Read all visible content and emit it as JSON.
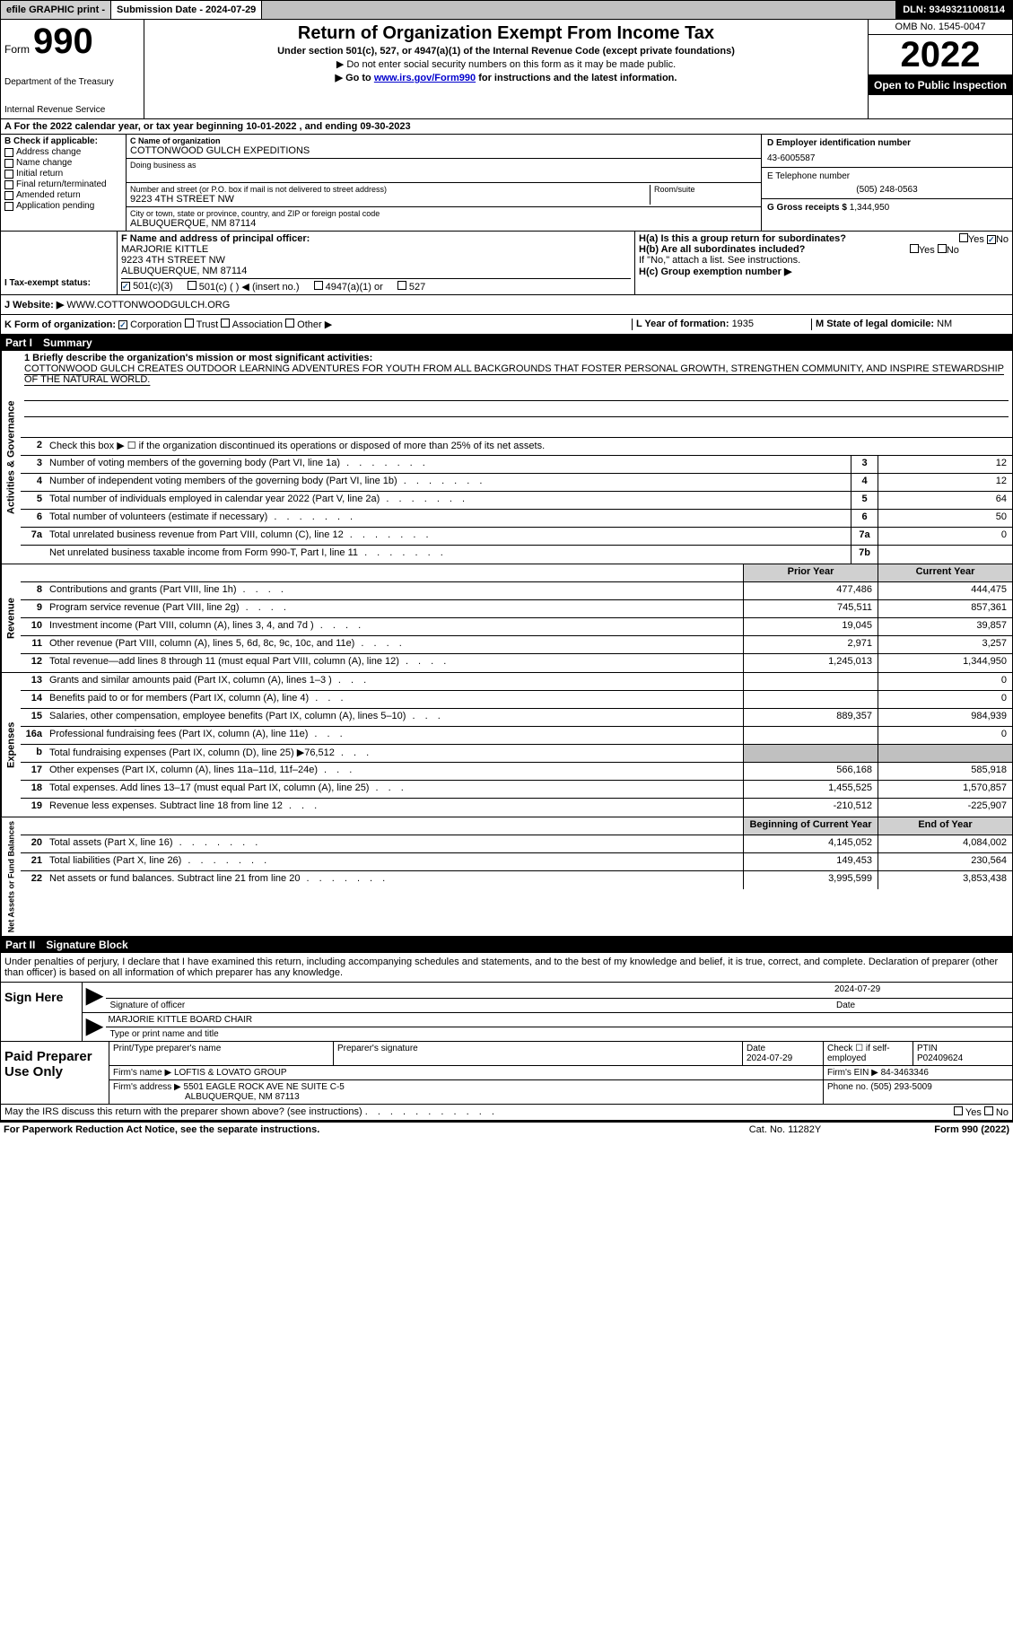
{
  "topbar": {
    "efile": "efile GRAPHIC print -",
    "submission": "Submission Date - 2024-07-29",
    "dln": "DLN: 93493211008114"
  },
  "header": {
    "form_word": "Form",
    "form_num": "990",
    "title": "Return of Organization Exempt From Income Tax",
    "subtitle": "Under section 501(c), 527, or 4947(a)(1) of the Internal Revenue Code (except private foundations)",
    "instr1": "▶ Do not enter social security numbers on this form as it may be made public.",
    "instr2_pre": "▶ Go to ",
    "instr2_link": "www.irs.gov/Form990",
    "instr2_post": " for instructions and the latest information.",
    "dept": "Department of the Treasury",
    "irs": "Internal Revenue Service",
    "omb": "OMB No. 1545-0047",
    "year": "2022",
    "open": "Open to Public Inspection"
  },
  "section_a": "A For the 2022 calendar year, or tax year beginning 10-01-2022    , and ending 09-30-2023",
  "section_b": {
    "label": "B Check if applicable:",
    "opts": [
      "Address change",
      "Name change",
      "Initial return",
      "Final return/terminated",
      "Amended return",
      "Application pending"
    ]
  },
  "section_c": {
    "name_label": "C Name of organization",
    "name": "COTTONWOOD GULCH EXPEDITIONS",
    "dba_label": "Doing business as",
    "street_label": "Number and street (or P.O. box if mail is not delivered to street address)",
    "street": "9223 4TH STREET NW",
    "room_label": "Room/suite",
    "city_label": "City or town, state or province, country, and ZIP or foreign postal code",
    "city": "ALBUQUERQUE, NM   87114"
  },
  "section_d": {
    "label": "D Employer identification number",
    "val": "43-6005587"
  },
  "section_e": {
    "label": "E Telephone number",
    "val": "(505) 248-0563"
  },
  "section_g": {
    "label": "G Gross receipts $ ",
    "val": "1,344,950"
  },
  "section_f": {
    "label": "F  Name and address of principal officer:",
    "name": "MARJORIE KITTLE",
    "addr1": "9223 4TH STREET NW",
    "addr2": "ALBUQUERQUE, NM  87114"
  },
  "section_h": {
    "a": "H(a)  Is this a group return for subordinates?",
    "a_yes": "Yes",
    "a_no": "No",
    "b": "H(b)  Are all subordinates included?",
    "b_note": "If \"No,\" attach a list. See instructions.",
    "c": "H(c)  Group exemption number ▶"
  },
  "section_i": {
    "label": "I    Tax-exempt status:",
    "o1": "501(c)(3)",
    "o2": "501(c) (  ) ◀ (insert no.)",
    "o3": "4947(a)(1) or",
    "o4": "527"
  },
  "section_j": {
    "label": "J    Website: ▶",
    "val": " WWW.COTTONWOODGULCH.ORG"
  },
  "section_k": {
    "label": "K Form of organization:",
    "o1": "Corporation",
    "o2": "Trust",
    "o3": "Association",
    "o4": "Other ▶"
  },
  "section_l": {
    "label": "L Year of formation: ",
    "val": "1935"
  },
  "section_m": {
    "label": "M State of legal domicile: ",
    "val": "NM"
  },
  "part1": {
    "num": "Part I",
    "title": "Summary"
  },
  "mission": {
    "label": "1  Briefly describe the organization's mission or most significant activities:",
    "text": "COTTONWOOD GULCH CREATES OUTDOOR LEARNING ADVENTURES FOR YOUTH FROM ALL BACKGROUNDS THAT FOSTER PERSONAL GROWTH, STRENGTHEN COMMUNITY, AND INSPIRE STEWARDSHIP OF THE NATURAL WORLD."
  },
  "line2": "Check this box ▶ ☐  if the organization discontinued its operations or disposed of more than 25% of its net assets.",
  "gov": [
    {
      "n": "3",
      "d": "Number of voting members of the governing body (Part VI, line 1a)",
      "b": "3",
      "v": "12"
    },
    {
      "n": "4",
      "d": "Number of independent voting members of the governing body (Part VI, line 1b)",
      "b": "4",
      "v": "12"
    },
    {
      "n": "5",
      "d": "Total number of individuals employed in calendar year 2022 (Part V, line 2a)",
      "b": "5",
      "v": "64"
    },
    {
      "n": "6",
      "d": "Total number of volunteers (estimate if necessary)",
      "b": "6",
      "v": "50"
    },
    {
      "n": "7a",
      "d": "Total unrelated business revenue from Part VIII, column (C), line 12",
      "b": "7a",
      "v": "0"
    },
    {
      "n": "",
      "d": "Net unrelated business taxable income from Form 990-T, Part I, line 11",
      "b": "7b",
      "v": ""
    }
  ],
  "col_headers": {
    "prior": "Prior Year",
    "current": "Current Year"
  },
  "revenue": [
    {
      "n": "8",
      "d": "Contributions and grants (Part VIII, line 1h)",
      "p": "477,486",
      "c": "444,475"
    },
    {
      "n": "9",
      "d": "Program service revenue (Part VIII, line 2g)",
      "p": "745,511",
      "c": "857,361"
    },
    {
      "n": "10",
      "d": "Investment income (Part VIII, column (A), lines 3, 4, and 7d )",
      "p": "19,045",
      "c": "39,857"
    },
    {
      "n": "11",
      "d": "Other revenue (Part VIII, column (A), lines 5, 6d, 8c, 9c, 10c, and 11e)",
      "p": "2,971",
      "c": "3,257"
    },
    {
      "n": "12",
      "d": "Total revenue—add lines 8 through 11 (must equal Part VIII, column (A), line 12)",
      "p": "1,245,013",
      "c": "1,344,950"
    }
  ],
  "expenses": [
    {
      "n": "13",
      "d": "Grants and similar amounts paid (Part IX, column (A), lines 1–3 )",
      "p": "",
      "c": "0"
    },
    {
      "n": "14",
      "d": "Benefits paid to or for members (Part IX, column (A), line 4)",
      "p": "",
      "c": "0"
    },
    {
      "n": "15",
      "d": "Salaries, other compensation, employee benefits (Part IX, column (A), lines 5–10)",
      "p": "889,357",
      "c": "984,939"
    },
    {
      "n": "16a",
      "d": "Professional fundraising fees (Part IX, column (A), line 11e)",
      "p": "",
      "c": "0"
    },
    {
      "n": "b",
      "d": "Total fundraising expenses (Part IX, column (D), line 25) ▶76,512",
      "p": "shade",
      "c": "shade"
    },
    {
      "n": "17",
      "d": "Other expenses (Part IX, column (A), lines 11a–11d, 11f–24e)",
      "p": "566,168",
      "c": "585,918"
    },
    {
      "n": "18",
      "d": "Total expenses. Add lines 13–17 (must equal Part IX, column (A), line 25)",
      "p": "1,455,525",
      "c": "1,570,857"
    },
    {
      "n": "19",
      "d": "Revenue less expenses. Subtract line 18 from line 12",
      "p": "-210,512",
      "c": "-225,907"
    }
  ],
  "net_headers": {
    "begin": "Beginning of Current Year",
    "end": "End of Year"
  },
  "netassets": [
    {
      "n": "20",
      "d": "Total assets (Part X, line 16)",
      "p": "4,145,052",
      "c": "4,084,002"
    },
    {
      "n": "21",
      "d": "Total liabilities (Part X, line 26)",
      "p": "149,453",
      "c": "230,564"
    },
    {
      "n": "22",
      "d": "Net assets or fund balances. Subtract line 21 from line 20",
      "p": "3,995,599",
      "c": "3,853,438"
    }
  ],
  "part2": {
    "num": "Part II",
    "title": "Signature Block"
  },
  "perjury": "Under penalties of perjury, I declare that I have examined this return, including accompanying schedules and statements, and to the best of my knowledge and belief, it is true, correct, and complete. Declaration of preparer (other than officer) is based on all information of which preparer has any knowledge.",
  "sign": {
    "here": "Sign Here",
    "sig_label": "Signature of officer",
    "date_val": "2024-07-29",
    "date_label": "Date",
    "name": "MARJORIE KITTLE  BOARD CHAIR",
    "name_label": "Type or print name and title"
  },
  "prep": {
    "title": "Paid Preparer Use Only",
    "h1": "Print/Type preparer's name",
    "h2": "Preparer's signature",
    "h3_label": "Date",
    "h3_val": "2024-07-29",
    "h4_label": "Check ☐ if self-employed",
    "h5_label": "PTIN",
    "h5_val": "P02409624",
    "firm_name_label": "Firm's name      ▶ ",
    "firm_name": "LOFTIS & LOVATO GROUP",
    "firm_ein_label": "Firm's EIN ▶ ",
    "firm_ein": "84-3463346",
    "firm_addr_label": "Firm's address ▶ ",
    "firm_addr1": "5501 EAGLE ROCK AVE NE SUITE C-5",
    "firm_addr2": "ALBUQUERQUE, NM  87113",
    "phone_label": "Phone no. ",
    "phone": "(505) 293-5009"
  },
  "discuss": "May the IRS discuss this return with the preparer shown above? (see instructions)",
  "paperwork": "For Paperwork Reduction Act Notice, see the separate instructions.",
  "catno": "Cat. No. 11282Y",
  "formfoot": "Form 990 (2022)",
  "side_labels": {
    "gov": "Activities & Governance",
    "rev": "Revenue",
    "exp": "Expenses",
    "net": "Net Assets or Fund Balances"
  }
}
